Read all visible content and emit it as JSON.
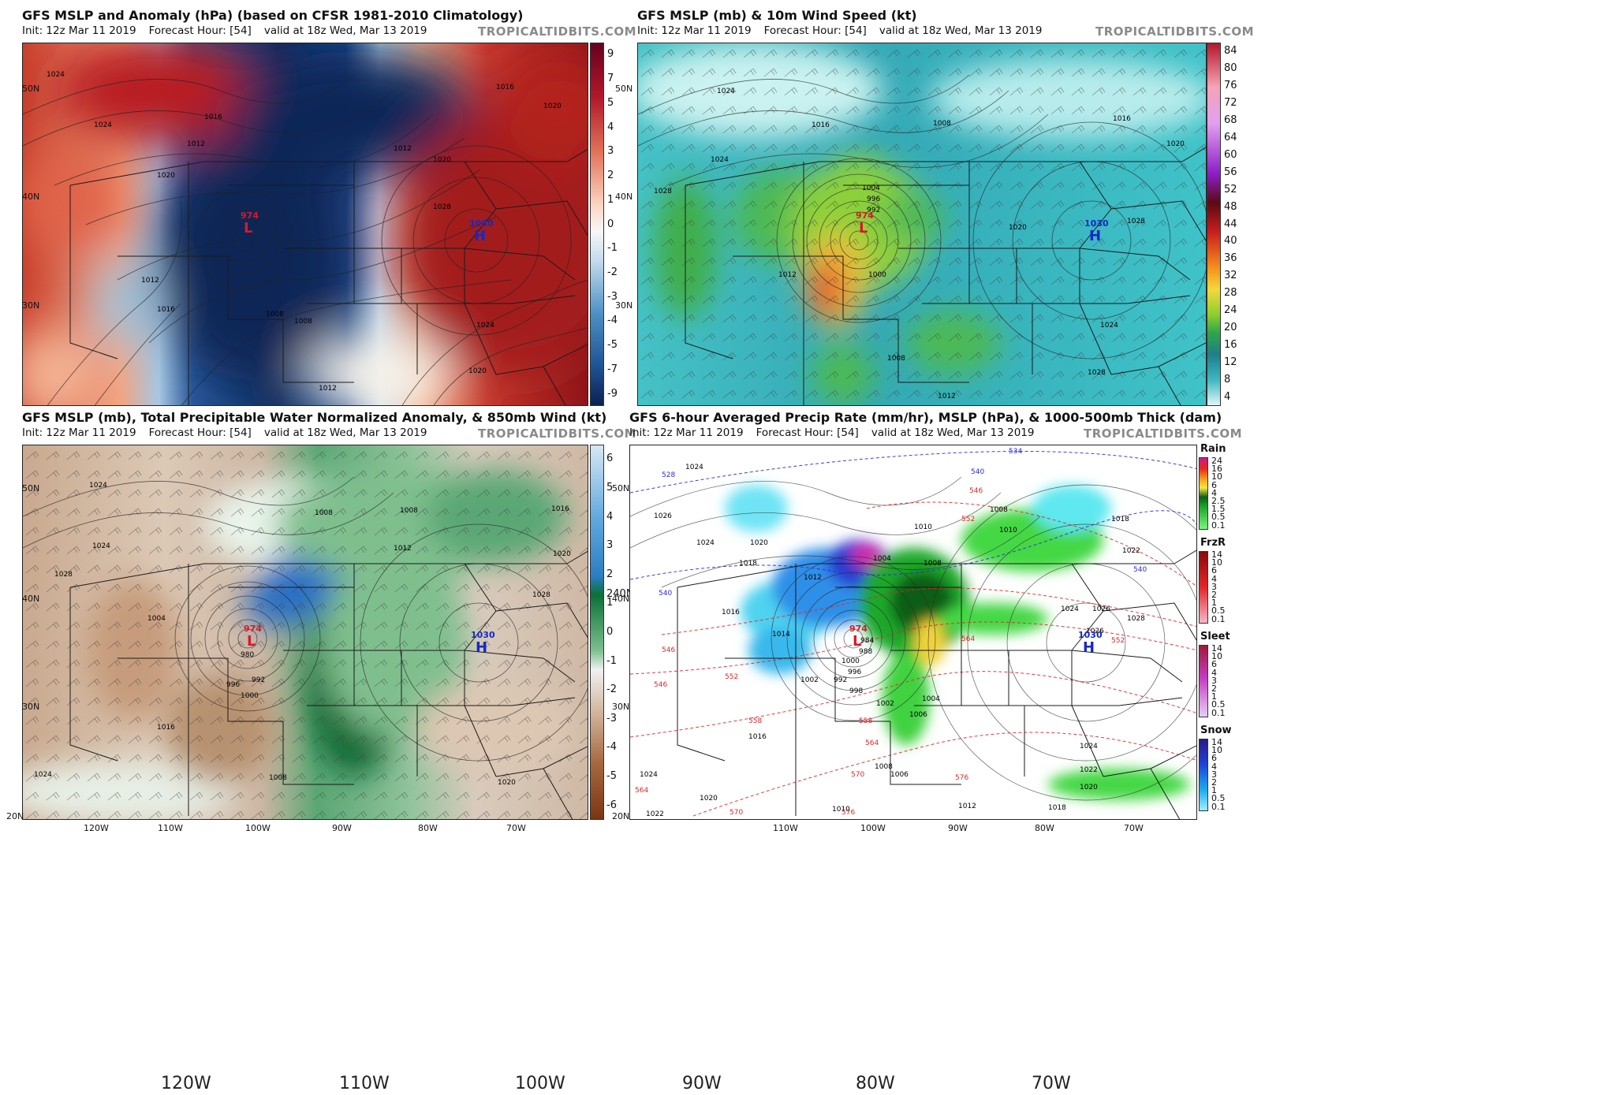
{
  "brand": "TROPICALTIDBITS.COM",
  "subtitle": {
    "init": "Init: 12z Mar 11 2019",
    "fh": "Forecast Hour: [54]",
    "valid": "valid at 18z Wed, Mar 13 2019"
  },
  "panels": [
    {
      "title": "GFS MSLP and Anomaly (hPa) (based on CFSR 1981-2010 Climatology)",
      "lat_labels": [
        "50N",
        "40N",
        "30N"
      ],
      "colorbar": [
        "9",
        "7",
        "5",
        "4",
        "3",
        "2",
        "1",
        "0",
        "-1",
        "-2",
        "-3",
        "-4",
        "-5",
        "-7",
        "-9"
      ],
      "low": {
        "value": "974",
        "letter": "L"
      },
      "high": {
        "value": "1030",
        "letter": "H"
      },
      "isobar_labels": [
        "1024",
        "1020",
        "1016",
        "1012",
        "1008",
        "1012",
        "1016",
        "1016",
        "1020",
        "1020",
        "1024",
        "1028",
        "1012",
        "1024",
        "1020",
        "1008",
        "1012"
      ]
    },
    {
      "title": "GFS MSLP (mb) & 10m Wind Speed (kt)",
      "lat_labels": [
        "50N",
        "40N",
        "30N"
      ],
      "colorbar": [
        "84",
        "80",
        "76",
        "72",
        "68",
        "64",
        "60",
        "56",
        "52",
        "48",
        "44",
        "40",
        "36",
        "32",
        "28",
        "24",
        "20",
        "16",
        "12",
        "8",
        "4"
      ],
      "low": {
        "value": "974",
        "letter": "L"
      },
      "high": {
        "value": "1030",
        "letter": "H"
      },
      "isobar_labels": [
        "1024",
        "1008",
        "1016",
        "1020",
        "1024",
        "1028",
        "1016",
        "1020",
        "1028",
        "1004",
        "1000",
        "996",
        "992",
        "1012",
        "1024",
        "1008",
        "1012",
        "1028"
      ]
    },
    {
      "title": "GFS MSLP (mb), Total Precipitable Water Normalized Anomaly, & 850mb Wind (kt)",
      "lat_labels": [
        "50N",
        "40N",
        "30N",
        "20N"
      ],
      "lon_labels": [
        "120W",
        "110W",
        "100W",
        "90W",
        "80W",
        "70W"
      ],
      "big_lon_labels": [
        "120W",
        "110W",
        "100W"
      ],
      "colorbar": [
        "6",
        "5",
        "4",
        "3",
        "2",
        "1",
        "0",
        "-1",
        "-2",
        "-3",
        "-4",
        "-5",
        "-6"
      ],
      "colorbar_extra": "240N",
      "low": {
        "value": "974",
        "letter": "L"
      },
      "high": {
        "value": "1030",
        "letter": "H"
      },
      "isobar_labels": [
        "1024",
        "1008",
        "1012",
        "1016",
        "1020",
        "1024",
        "1028",
        "1008",
        "980",
        "992",
        "996",
        "1000",
        "1004",
        "1028",
        "1016",
        "1024",
        "1020",
        "1008"
      ]
    },
    {
      "title": "GFS 6-hour Averaged Precip Rate (mm/hr), MSLP (hPa), & 1000-500mb Thick (dam)",
      "lat_labels": [
        "50N",
        "40N",
        "30N",
        "20N"
      ],
      "lon_labels": [
        "110W",
        "100W",
        "90W",
        "80W",
        "70W"
      ],
      "big_lon_labels": [
        "90W",
        "80W",
        "70W"
      ],
      "rain": {
        "label": "Rain",
        "ticks": [
          "24",
          "16",
          "10",
          "6",
          "4",
          "2.5",
          "1.5",
          "0.5",
          "0.1"
        ]
      },
      "frzr": {
        "label": "FrzR",
        "ticks": [
          "14",
          "10",
          "6",
          "4",
          "3",
          "2",
          "1",
          "0.5",
          "0.1"
        ]
      },
      "sleet": {
        "label": "Sleet",
        "ticks": [
          "14",
          "10",
          "6",
          "4",
          "3",
          "2",
          "1",
          "0.5",
          "0.1"
        ]
      },
      "snow": {
        "label": "Snow",
        "ticks": [
          "14",
          "10",
          "6",
          "4",
          "3",
          "2",
          "1",
          "0.5",
          "0.1"
        ]
      },
      "low": {
        "value": "974",
        "letter": "L"
      },
      "high": {
        "value": "1030",
        "letter": "H"
      },
      "thick_labels": [
        "534",
        "540",
        "528",
        "540",
        "546",
        "552",
        "546",
        "552",
        "558",
        "558",
        "564",
        "570",
        "576",
        "564",
        "552",
        "540",
        "570",
        "576",
        "564",
        "546"
      ],
      "isobar_labels": [
        "1024",
        "1026",
        "1008",
        "1010",
        "1018",
        "1020",
        "1024",
        "1008",
        "1010",
        "1012",
        "1014",
        "1016",
        "1018",
        "1022",
        "1024",
        "1026",
        "1028",
        "1004",
        "1002",
        "1000",
        "996",
        "992",
        "988",
        "984",
        "998",
        "1002",
        "1006",
        "1004",
        "1026",
        "1024",
        "1022",
        "1020",
        "1018",
        "1012",
        "1008",
        "1006",
        "1010",
        "1016",
        "1024",
        "1022",
        "1020"
      ]
    }
  ]
}
